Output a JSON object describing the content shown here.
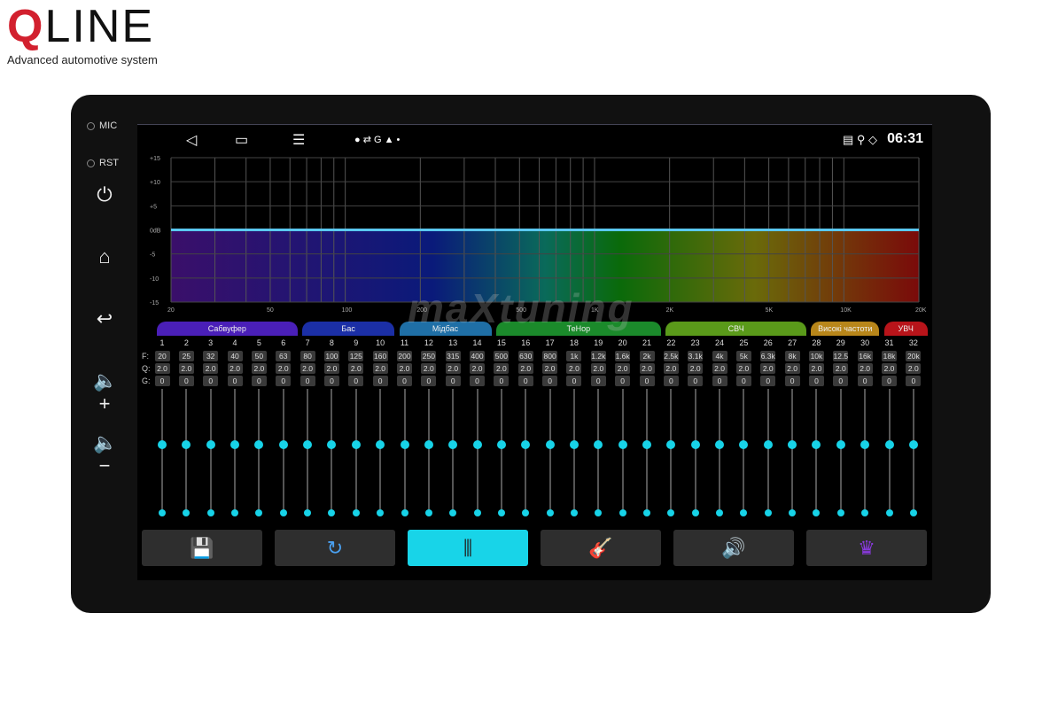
{
  "brand": {
    "logo_q": "Q",
    "logo_rest": "LINE",
    "tagline": "Advanced automotive system"
  },
  "device": {
    "mic_label": "MIC",
    "rst_label": "RST"
  },
  "status": {
    "time": "06:31",
    "left_icons": "● ⇄ G ▲ •"
  },
  "graph": {
    "y_ticks": [
      "+15",
      "+10",
      "+5",
      "0dB",
      "-5",
      "-10",
      "-15"
    ],
    "x_ticks": [
      "20",
      "50",
      "100",
      "200",
      "500",
      "1K",
      "2K",
      "5K",
      "10K",
      "20K"
    ]
  },
  "chart_data": {
    "type": "line",
    "xlabel": "",
    "ylabel": "",
    "x_scale": "log",
    "xlim": [
      20,
      20000
    ],
    "ylim": [
      -15,
      15
    ],
    "x_ticks": [
      "20",
      "50",
      "100",
      "200",
      "500",
      "1K",
      "2K",
      "5K",
      "10K",
      "20K"
    ],
    "y_ticks": [
      "+15",
      "+10",
      "+5",
      "0dB",
      "-5",
      "-10",
      "-15"
    ],
    "series": [
      {
        "values_db_constant": 0
      }
    ],
    "grid": true,
    "fill": "spectrum gradient"
  },
  "bands": [
    {
      "label": "Сабвуфер",
      "from": 1,
      "to": 6,
      "color": "#4a1fb8"
    },
    {
      "label": "Бас",
      "from": 7,
      "to": 10,
      "color": "#1b2fa6"
    },
    {
      "label": "Мідбас",
      "from": 11,
      "to": 14,
      "color": "#1f6fa6"
    },
    {
      "label": "ТеНор",
      "from": 15,
      "to": 21,
      "color": "#1b8a2b"
    },
    {
      "label": "СВЧ",
      "from": 22,
      "to": 27,
      "color": "#5a9a1a"
    },
    {
      "label": "Високі частоти",
      "from": 28,
      "to": 30,
      "color": "#b8861a"
    },
    {
      "label": "УВЧ",
      "from": 31,
      "to": 32,
      "color": "#b8141a"
    }
  ],
  "row_labels": {
    "f": "F:",
    "q": "Q:",
    "g": "G:"
  },
  "channels": [
    {
      "n": "1",
      "f": "20",
      "q": "2.0",
      "g": "0"
    },
    {
      "n": "2",
      "f": "25",
      "q": "2.0",
      "g": "0"
    },
    {
      "n": "3",
      "f": "32",
      "q": "2.0",
      "g": "0"
    },
    {
      "n": "4",
      "f": "40",
      "q": "2.0",
      "g": "0"
    },
    {
      "n": "5",
      "f": "50",
      "q": "2.0",
      "g": "0"
    },
    {
      "n": "6",
      "f": "63",
      "q": "2.0",
      "g": "0"
    },
    {
      "n": "7",
      "f": "80",
      "q": "2.0",
      "g": "0"
    },
    {
      "n": "8",
      "f": "100",
      "q": "2.0",
      "g": "0"
    },
    {
      "n": "9",
      "f": "125",
      "q": "2.0",
      "g": "0"
    },
    {
      "n": "10",
      "f": "160",
      "q": "2.0",
      "g": "0"
    },
    {
      "n": "11",
      "f": "200",
      "q": "2.0",
      "g": "0"
    },
    {
      "n": "12",
      "f": "250",
      "q": "2.0",
      "g": "0"
    },
    {
      "n": "13",
      "f": "315",
      "q": "2.0",
      "g": "0"
    },
    {
      "n": "14",
      "f": "400",
      "q": "2.0",
      "g": "0"
    },
    {
      "n": "15",
      "f": "500",
      "q": "2.0",
      "g": "0"
    },
    {
      "n": "16",
      "f": "630",
      "q": "2.0",
      "g": "0"
    },
    {
      "n": "17",
      "f": "800",
      "q": "2.0",
      "g": "0"
    },
    {
      "n": "18",
      "f": "1k",
      "q": "2.0",
      "g": "0"
    },
    {
      "n": "19",
      "f": "1.2k",
      "q": "2.0",
      "g": "0"
    },
    {
      "n": "20",
      "f": "1.6k",
      "q": "2.0",
      "g": "0"
    },
    {
      "n": "21",
      "f": "2k",
      "q": "2.0",
      "g": "0"
    },
    {
      "n": "22",
      "f": "2.5k",
      "q": "2.0",
      "g": "0"
    },
    {
      "n": "23",
      "f": "3.1k",
      "q": "2.0",
      "g": "0"
    },
    {
      "n": "24",
      "f": "4k",
      "q": "2.0",
      "g": "0"
    },
    {
      "n": "25",
      "f": "5k",
      "q": "2.0",
      "g": "0"
    },
    {
      "n": "26",
      "f": "6.3k",
      "q": "2.0",
      "g": "0"
    },
    {
      "n": "27",
      "f": "8k",
      "q": "2.0",
      "g": "0"
    },
    {
      "n": "28",
      "f": "10k",
      "q": "2.0",
      "g": "0"
    },
    {
      "n": "29",
      "f": "12.5",
      "q": "2.0",
      "g": "0"
    },
    {
      "n": "30",
      "f": "16k",
      "q": "2.0",
      "g": "0"
    },
    {
      "n": "31",
      "f": "18k",
      "q": "2.0",
      "g": "0"
    },
    {
      "n": "32",
      "f": "20k",
      "q": "2.0",
      "g": "0"
    }
  ],
  "slider_gain_db": 0,
  "toolbar": [
    {
      "name": "save",
      "icon": "floppy-disk-icon",
      "glyph": "💾"
    },
    {
      "name": "reset",
      "icon": "reset-icon",
      "glyph": "↻"
    },
    {
      "name": "equalizer",
      "icon": "sliders-icon",
      "glyph": "⫼",
      "active": true
    },
    {
      "name": "instrument",
      "icon": "guitar-icon",
      "glyph": "🎸"
    },
    {
      "name": "sound",
      "icon": "speaker-icon",
      "glyph": "🔊"
    },
    {
      "name": "premium",
      "icon": "crown-icon",
      "glyph": "♛"
    }
  ],
  "watermark": "maXtuning"
}
